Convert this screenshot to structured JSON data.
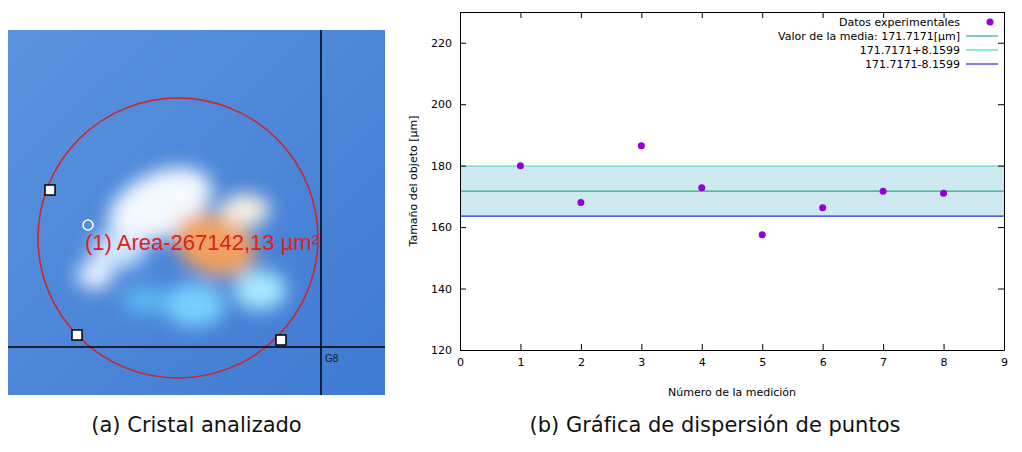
{
  "chart_data": {
    "type": "scatter",
    "x_label": "Número de la medición",
    "y_label": "Tamaño del objeto [µm]",
    "xlim": [
      0,
      9
    ],
    "xticks": [
      0,
      1,
      2,
      3,
      4,
      5,
      6,
      7,
      8,
      9
    ],
    "ylim": [
      120,
      230
    ],
    "yticks": [
      120,
      140,
      160,
      180,
      200,
      220
    ],
    "grid": false,
    "legend": "upper right",
    "series": [
      {
        "name": "Datos experimentales",
        "type": "scatter",
        "marker": "circle",
        "color": "#9400d3",
        "x": [
          1,
          2,
          3,
          4,
          5,
          6,
          7,
          8
        ],
        "values": [
          180.0,
          168.0,
          186.5,
          172.8,
          157.5,
          166.3,
          171.7,
          171.0
        ]
      },
      {
        "name": "Valor de la media: 171.7171[µm]",
        "type": "line",
        "line_style": "solid",
        "color": "#2ea882",
        "x": [
          0,
          9
        ],
        "values": [
          171.7171,
          171.7171
        ]
      },
      {
        "name": "171.7171+8.1599",
        "type": "line",
        "line_style": "solid",
        "color": "#40d8c8",
        "x": [
          0,
          9
        ],
        "values": [
          179.877,
          179.877
        ]
      },
      {
        "name": "171.7171-8.1599",
        "type": "line",
        "line_style": "solid",
        "color": "#2a2ad8",
        "x": [
          0,
          9
        ],
        "values": [
          163.5572,
          163.5572
        ]
      }
    ]
  },
  "figure": {
    "panels": [
      {
        "caption": "(a) Cristal analizado",
        "image_label": "(1) Area-267142,13 µm²",
        "grid_label": "G8"
      },
      {
        "caption": "(b) Gráfica de dispersión de puntos"
      }
    ]
  }
}
